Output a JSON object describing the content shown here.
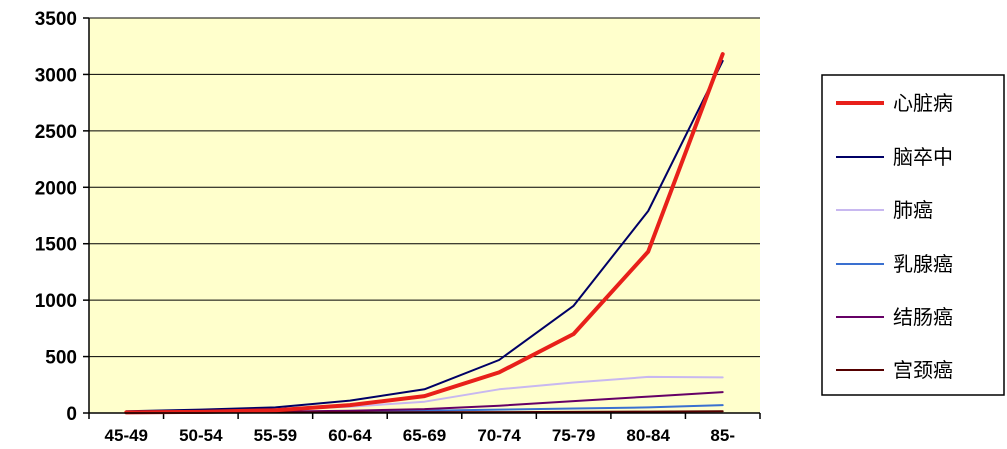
{
  "chart_data": {
    "type": "line",
    "categories": [
      "45-49",
      "50-54",
      "55-59",
      "60-64",
      "65-69",
      "70-74",
      "75-79",
      "80-84",
      "85-"
    ],
    "ylim": [
      0,
      3500
    ],
    "yticks": [
      0,
      500,
      1000,
      1500,
      2000,
      2500,
      3000,
      3500
    ],
    "grid": "horizontal",
    "legend": "right",
    "plot_background": "#FFFFCC",
    "series": [
      {
        "name": "心脏病",
        "color": "#E8201A",
        "width": 4,
        "values": [
          5,
          10,
          25,
          70,
          150,
          360,
          700,
          1430,
          3180
        ]
      },
      {
        "name": "脑卒中",
        "color": "#000066",
        "width": 2,
        "values": [
          15,
          30,
          50,
          110,
          210,
          470,
          950,
          1790,
          3120
        ]
      },
      {
        "name": "肺癌",
        "color": "#C8B8F0",
        "width": 2,
        "values": [
          5,
          15,
          30,
          55,
          100,
          210,
          270,
          320,
          315
        ]
      },
      {
        "name": "乳腺癌",
        "color": "#3A70D0",
        "width": 2,
        "values": [
          5,
          8,
          10,
          15,
          20,
          30,
          40,
          50,
          70
        ]
      },
      {
        "name": "结肠癌",
        "color": "#660066",
        "width": 2,
        "values": [
          5,
          8,
          12,
          20,
          35,
          65,
          105,
          145,
          185
        ]
      },
      {
        "name": "宫颈癌",
        "color": "#550000",
        "width": 2,
        "values": [
          2,
          3,
          4,
          5,
          6,
          8,
          10,
          12,
          15
        ]
      }
    ]
  }
}
